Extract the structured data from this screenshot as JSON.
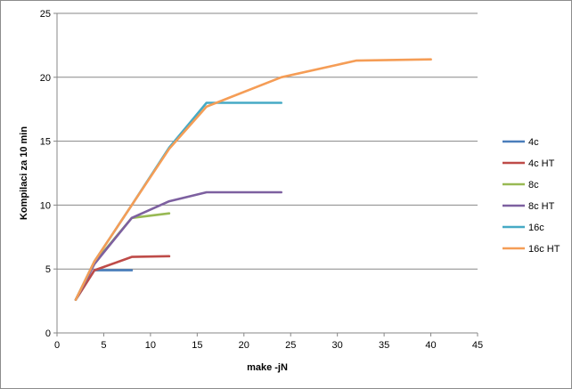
{
  "chart_data": {
    "type": "line",
    "title": "",
    "xlabel": "make -jN",
    "ylabel": "Kompilaci za 10 min",
    "xlim": [
      0,
      45
    ],
    "ylim": [
      0,
      25
    ],
    "xticks": [
      0,
      5,
      10,
      15,
      20,
      25,
      30,
      35,
      40,
      45
    ],
    "yticks": [
      0,
      5,
      10,
      15,
      20,
      25
    ],
    "grid": "horizontal",
    "legend": "right",
    "series": [
      {
        "name": "4c",
        "color": "#4a7ebb",
        "x": [
          2,
          4,
          8
        ],
        "y": [
          2.6,
          4.9,
          4.9
        ]
      },
      {
        "name": "4c HT",
        "color": "#be4b48",
        "x": [
          2,
          4,
          8,
          12
        ],
        "y": [
          2.6,
          4.9,
          5.95,
          6.0
        ]
      },
      {
        "name": "8c",
        "color": "#98b954",
        "x": [
          2,
          4,
          8,
          12
        ],
        "y": [
          2.6,
          5.5,
          9.0,
          9.35
        ]
      },
      {
        "name": "8c HT",
        "color": "#7d60a0",
        "x": [
          2,
          4,
          8,
          12,
          16,
          24
        ],
        "y": [
          2.6,
          5.4,
          9.0,
          10.3,
          11.0,
          11.0
        ]
      },
      {
        "name": "16c",
        "color": "#46aac5",
        "x": [
          2,
          4,
          8,
          12,
          16,
          24
        ],
        "y": [
          2.6,
          5.6,
          10.0,
          14.5,
          18.0,
          18.0
        ]
      },
      {
        "name": "16c HT",
        "color": "#f59d56",
        "x": [
          2,
          4,
          8,
          12,
          16,
          24,
          32,
          40
        ],
        "y": [
          2.6,
          5.6,
          10.0,
          14.4,
          17.7,
          20.0,
          21.3,
          21.4
        ]
      }
    ]
  }
}
